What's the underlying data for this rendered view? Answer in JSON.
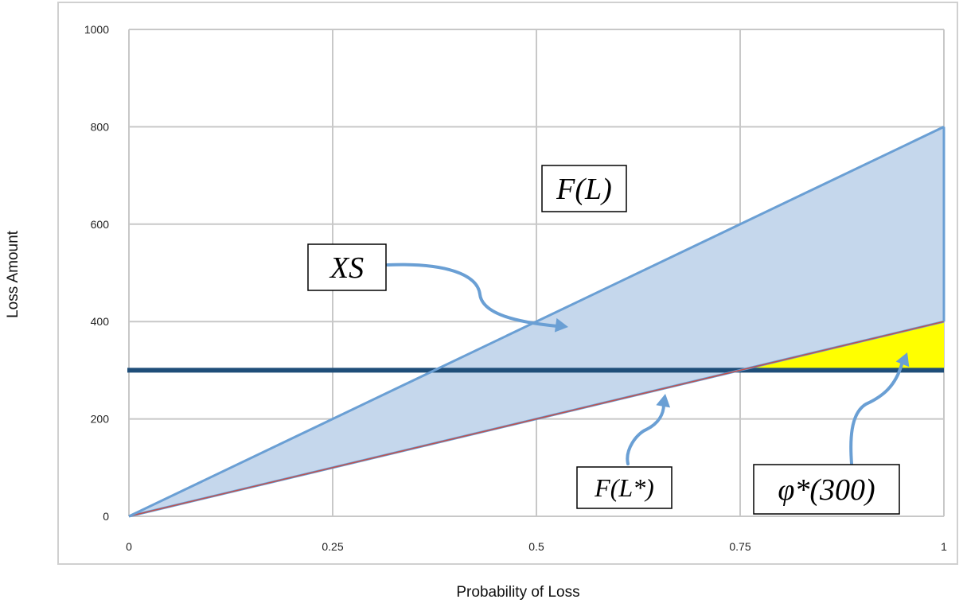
{
  "chart_data": {
    "type": "area",
    "title": "",
    "xlabel": "Probability of Loss",
    "ylabel": "Loss Amount",
    "xlim": [
      0,
      1
    ],
    "ylim": [
      0,
      1000
    ],
    "x_ticks": [
      0,
      0.25,
      0.5,
      0.75,
      1
    ],
    "x_tick_labels": [
      "0",
      "0.25",
      "0.5",
      "0.75",
      "1"
    ],
    "y_ticks": [
      0,
      200,
      400,
      600,
      800,
      1000
    ],
    "y_tick_labels": [
      "0",
      "200",
      "400",
      "600",
      "800",
      "1000"
    ],
    "grid": true,
    "legend": "none",
    "series": [
      {
        "x": [
          0,
          1
        ],
        "values": [
          0,
          800
        ],
        "color": "#6a9fd4"
      },
      {
        "x": [
          0,
          1
        ],
        "values": [
          0,
          400
        ],
        "color": "#c0504d"
      },
      {
        "x": [
          0,
          1
        ],
        "values": [
          300,
          300
        ],
        "color": "#1f4e79"
      }
    ],
    "regions": [
      {
        "color": "#c5d7ec"
      },
      {
        "color": "#ffff00"
      }
    ],
    "annotations": [
      {
        "label": "F(L)",
        "at": [
          0.6,
          670
        ]
      },
      {
        "label": "XS",
        "at": [
          0.25,
          515
        ]
      },
      {
        "label": "F(L*)",
        "at": [
          0.67,
          20
        ]
      },
      {
        "label": "φ*(300)",
        "at": [
          0.92,
          15
        ]
      }
    ]
  }
}
